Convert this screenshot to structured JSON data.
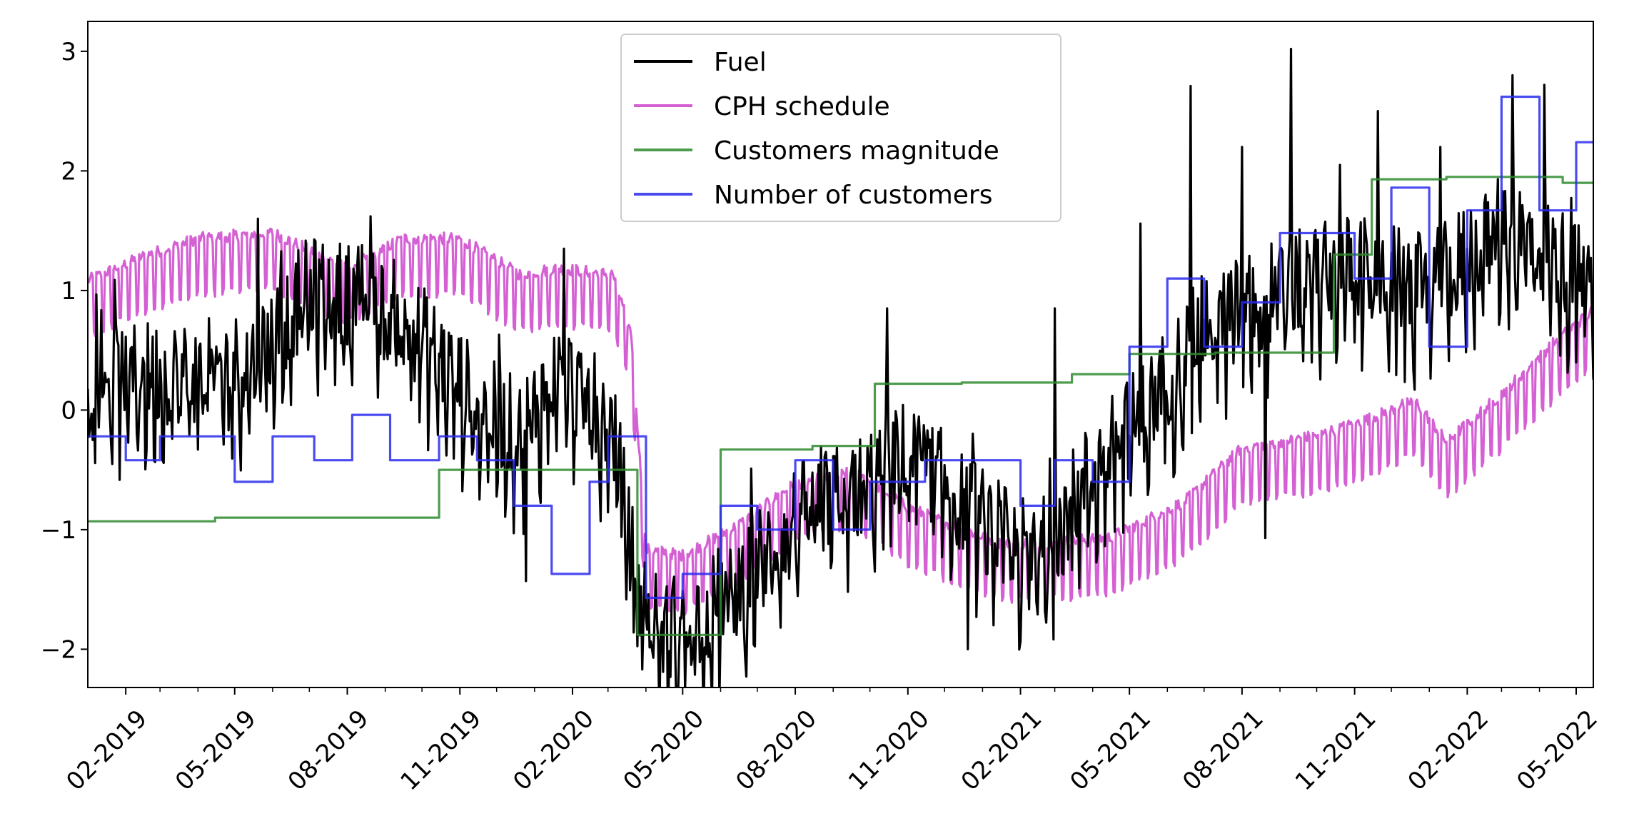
{
  "chart_data": {
    "type": "line",
    "title": "",
    "xlabel": "",
    "ylabel": "",
    "x_start": "2019-01-01",
    "x_end": "2022-05-15",
    "ylim": [
      -2.32,
      3.25
    ],
    "yticks": [
      {
        "value": -2,
        "label": "−2"
      },
      {
        "value": -1,
        "label": "−1"
      },
      {
        "value": 0,
        "label": "0"
      },
      {
        "value": 1,
        "label": "1"
      },
      {
        "value": 2,
        "label": "2"
      },
      {
        "value": 3,
        "label": "3"
      }
    ],
    "xticks": [
      {
        "date": "2019-02-01",
        "label": "02-2019"
      },
      {
        "date": "2019-05-01",
        "label": "05-2019"
      },
      {
        "date": "2019-08-01",
        "label": "08-2019"
      },
      {
        "date": "2019-11-01",
        "label": "11-2019"
      },
      {
        "date": "2020-02-01",
        "label": "02-2020"
      },
      {
        "date": "2020-05-01",
        "label": "05-2020"
      },
      {
        "date": "2020-08-01",
        "label": "08-2020"
      },
      {
        "date": "2020-11-01",
        "label": "11-2020"
      },
      {
        "date": "2021-02-01",
        "label": "02-2021"
      },
      {
        "date": "2021-05-01",
        "label": "05-2021"
      },
      {
        "date": "2021-08-01",
        "label": "08-2021"
      },
      {
        "date": "2021-11-01",
        "label": "11-2021"
      },
      {
        "date": "2022-02-01",
        "label": "02-2022"
      },
      {
        "date": "2022-05-01",
        "label": "05-2022"
      }
    ],
    "legend_position": "top-center",
    "series": [
      {
        "name": "Fuel",
        "color": "#000000",
        "style": "noisy",
        "noise": 0.55,
        "anchors": [
          [
            "2019-01-01",
            0.15
          ],
          [
            "2019-02-15",
            0.2
          ],
          [
            "2019-04-01",
            0.2
          ],
          [
            "2019-05-15",
            0.3
          ],
          [
            "2019-07-01",
            0.9
          ],
          [
            "2019-08-15",
            0.85
          ],
          [
            "2019-10-01",
            0.5
          ],
          [
            "2019-11-15",
            -0.05
          ],
          [
            "2019-12-20",
            -0.3
          ],
          [
            "2020-01-20",
            0.25
          ],
          [
            "2020-03-05",
            -0.25
          ],
          [
            "2020-03-25",
            -1.6
          ],
          [
            "2020-04-15",
            -1.95
          ],
          [
            "2020-05-20",
            -1.8
          ],
          [
            "2020-06-20",
            -1.5
          ],
          [
            "2020-08-01",
            -1.0
          ],
          [
            "2020-09-15",
            -0.8
          ],
          [
            "2020-11-01",
            -0.45
          ],
          [
            "2021-01-15",
            -1.15
          ],
          [
            "2021-02-15",
            -1.35
          ],
          [
            "2021-04-01",
            -0.6
          ],
          [
            "2021-05-15",
            -0.1
          ],
          [
            "2021-07-01",
            0.6
          ],
          [
            "2021-09-01",
            0.9
          ],
          [
            "2021-11-01",
            1.1
          ],
          [
            "2022-01-01",
            0.9
          ],
          [
            "2022-03-01",
            1.45
          ],
          [
            "2022-04-01",
            1.3
          ],
          [
            "2022-05-15",
            0.9
          ]
        ]
      },
      {
        "name": "CPH schedule",
        "color": "#cc44cc",
        "style": "weekly",
        "amplitude": 0.3,
        "anchors": [
          [
            "2019-01-01",
            0.95
          ],
          [
            "2019-02-15",
            1.15
          ],
          [
            "2019-04-01",
            1.3
          ],
          [
            "2019-06-01",
            1.35
          ],
          [
            "2019-08-01",
            1.05
          ],
          [
            "2019-09-15",
            1.3
          ],
          [
            "2019-11-01",
            1.3
          ],
          [
            "2019-12-20",
            1.0
          ],
          [
            "2020-01-20",
            1.05
          ],
          [
            "2020-03-05",
            1.0
          ],
          [
            "2020-03-20",
            0.5
          ],
          [
            "2020-04-01",
            -1.3
          ],
          [
            "2020-05-01",
            -1.35
          ],
          [
            "2020-06-15",
            -1.1
          ],
          [
            "2020-08-01",
            -0.75
          ],
          [
            "2020-09-20",
            -0.65
          ],
          [
            "2020-11-01",
            -0.95
          ],
          [
            "2021-01-15",
            -1.25
          ],
          [
            "2021-02-15",
            -1.25
          ],
          [
            "2021-04-15",
            -1.2
          ],
          [
            "2021-06-15",
            -0.9
          ],
          [
            "2021-08-01",
            -0.45
          ],
          [
            "2021-10-01",
            -0.35
          ],
          [
            "2021-11-15",
            -0.2
          ],
          [
            "2021-12-20",
            -0.05
          ],
          [
            "2022-01-15",
            -0.4
          ],
          [
            "2022-03-01",
            0.0
          ],
          [
            "2022-04-15",
            0.45
          ],
          [
            "2022-05-15",
            0.7
          ]
        ]
      },
      {
        "name": "Customers magnitude",
        "color": "#2e8b2e",
        "style": "step",
        "steps": [
          [
            "2019-01-01",
            -0.93
          ],
          [
            "2019-04-15",
            -0.9
          ],
          [
            "2019-10-15",
            -0.5
          ],
          [
            "2020-03-25",
            -1.88
          ],
          [
            "2020-06-01",
            -0.33
          ],
          [
            "2020-08-15",
            -0.3
          ],
          [
            "2020-10-05",
            0.22
          ],
          [
            "2020-12-15",
            0.23
          ],
          [
            "2021-03-15",
            0.3
          ],
          [
            "2021-05-01",
            0.47
          ],
          [
            "2021-07-10",
            0.48
          ],
          [
            "2021-10-15",
            1.3
          ],
          [
            "2021-11-15",
            1.93
          ],
          [
            "2022-01-15",
            1.95
          ],
          [
            "2022-04-20",
            1.9
          ]
        ]
      },
      {
        "name": "Number of customers",
        "color": "#2a2aee",
        "style": "step",
        "steps": [
          [
            "2019-01-01",
            -0.22
          ],
          [
            "2019-02-01",
            -0.42
          ],
          [
            "2019-03-01",
            -0.22
          ],
          [
            "2019-05-01",
            -0.6
          ],
          [
            "2019-06-01",
            -0.22
          ],
          [
            "2019-07-05",
            -0.42
          ],
          [
            "2019-08-05",
            -0.04
          ],
          [
            "2019-09-05",
            -0.42
          ],
          [
            "2019-10-15",
            -0.22
          ],
          [
            "2019-11-15",
            -0.42
          ],
          [
            "2019-12-15",
            -0.8
          ],
          [
            "2020-01-15",
            -1.37
          ],
          [
            "2020-02-15",
            -0.6
          ],
          [
            "2020-03-01",
            -0.22
          ],
          [
            "2020-04-01",
            -1.57
          ],
          [
            "2020-05-01",
            -1.37
          ],
          [
            "2020-06-01",
            -0.8
          ],
          [
            "2020-07-01",
            -1.0
          ],
          [
            "2020-08-01",
            -0.42
          ],
          [
            "2020-09-01",
            -1.0
          ],
          [
            "2020-10-01",
            -0.6
          ],
          [
            "2020-11-15",
            -0.42
          ],
          [
            "2021-02-01",
            -0.8
          ],
          [
            "2021-03-01",
            -0.42
          ],
          [
            "2021-04-01",
            -0.6
          ],
          [
            "2021-05-01",
            0.53
          ],
          [
            "2021-06-01",
            1.1
          ],
          [
            "2021-07-01",
            0.53
          ],
          [
            "2021-08-01",
            0.9
          ],
          [
            "2021-09-01",
            1.48
          ],
          [
            "2021-11-01",
            1.1
          ],
          [
            "2021-12-01",
            1.86
          ],
          [
            "2022-01-01",
            0.53
          ],
          [
            "2022-02-01",
            1.67
          ],
          [
            "2022-03-01",
            2.62
          ],
          [
            "2022-04-01",
            1.67
          ],
          [
            "2022-05-01",
            2.24
          ]
        ]
      }
    ],
    "fuel_spikes": [
      [
        "2021-05-10",
        1.56
      ],
      [
        "2021-06-20",
        2.71
      ],
      [
        "2021-08-01",
        2.2
      ],
      [
        "2021-09-10",
        3.02
      ],
      [
        "2021-10-20",
        2.05
      ],
      [
        "2021-11-20",
        2.5
      ],
      [
        "2022-01-10",
        2.2
      ],
      [
        "2022-03-10",
        2.8
      ],
      [
        "2022-04-05",
        2.72
      ],
      [
        "2020-10-15",
        0.85
      ],
      [
        "2021-03-01",
        0.85
      ],
      [
        "2019-05-20",
        1.6
      ],
      [
        "2019-08-20",
        1.62
      ],
      [
        "2020-01-25",
        1.35
      ],
      [
        "2021-08-20",
        -1.07
      ],
      [
        "2020-12-20",
        -2.0
      ],
      [
        "2019-12-25",
        -1.43
      ]
    ]
  }
}
